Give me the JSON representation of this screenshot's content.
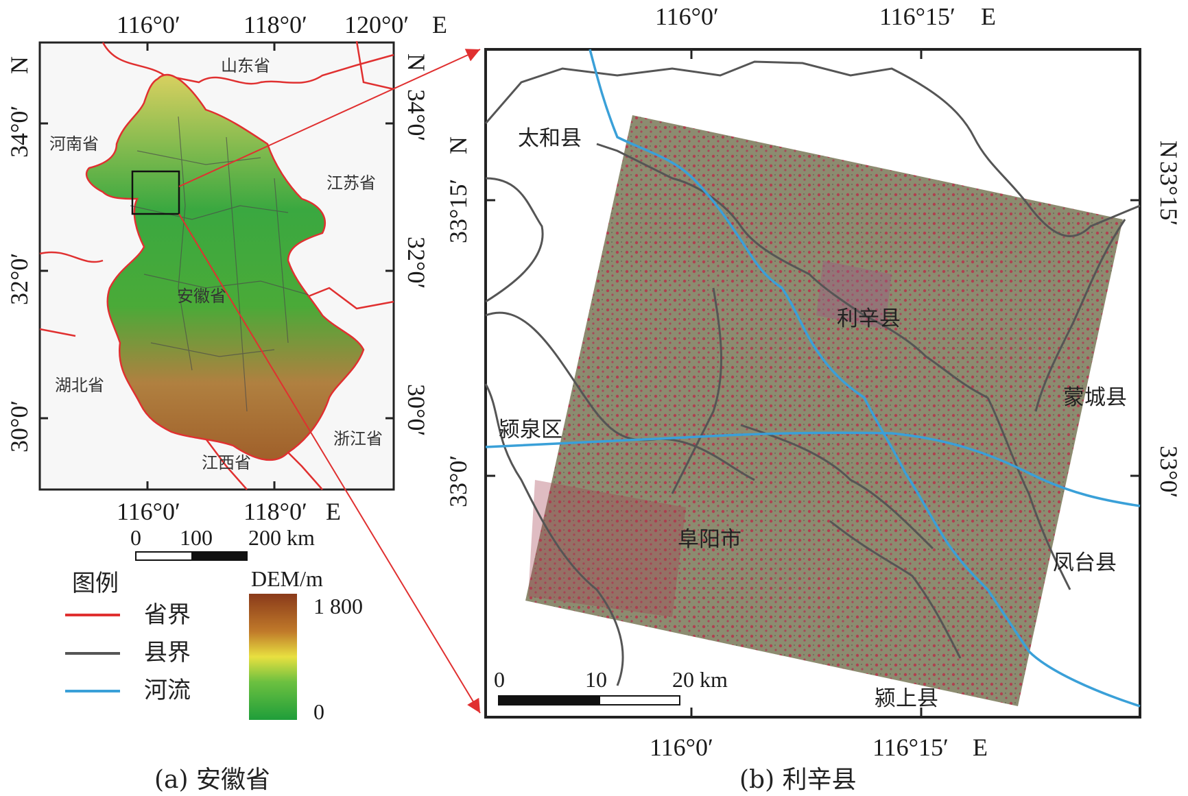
{
  "panel_a": {
    "top_lon_ticks": [
      "116°0′",
      "118°0′",
      "120°0′"
    ],
    "top_lon_suffix": "E",
    "bottom_lon_ticks": [
      "116°0′",
      "118°0′"
    ],
    "bottom_lon_suffix": "E",
    "lat_ticks": [
      "34°0′",
      "32°0′",
      "30°0′"
    ],
    "lat_suffix": "N",
    "places": {
      "shandong": "山东省",
      "henan": "河南省",
      "jiangsu": "江苏省",
      "anhui": "安徽省",
      "hubei": "湖北省",
      "zhejiang": "浙江省",
      "jiangxi": "江西省"
    },
    "scale": {
      "l0": "0",
      "l1": "100",
      "l2": "200 km"
    },
    "caption": "(a) 安徽省"
  },
  "legend": {
    "title": "图例",
    "province": "省界",
    "county": "县界",
    "river": "河流",
    "dem_title": "DEM/m",
    "dem_max": "1 800",
    "dem_min": "0"
  },
  "panel_b": {
    "top_lon_ticks": [
      "116°0′",
      "116°15′"
    ],
    "top_lon_suffix": "E",
    "bottom_lon_ticks": [
      "116°0′",
      "116°15′"
    ],
    "bottom_lon_suffix": "E",
    "lat_ticks": [
      "33°15′",
      "33°0′"
    ],
    "lat_suffix": "N",
    "places": {
      "taihe": "太和县",
      "lixin": "利辛县",
      "mengcheng": "蒙城县",
      "yingquan": "颍泉区",
      "fuyang": "阜阳市",
      "fengtai": "凤台县",
      "yingshang": "颍上县"
    },
    "scale": {
      "l0": "0",
      "l1": "10",
      "l2": "20 km"
    },
    "caption": "(b) 利辛县"
  },
  "colors": {
    "province_line": "#e03030",
    "county_line": "#555555",
    "river_line": "#3aa0d8",
    "dem_high": "#8a3a1a",
    "dem_mid": "#e8e040",
    "dem_low": "#1f9e3a",
    "imagery": "#8a8a6e",
    "arrow": "#e03030"
  },
  "icons": {
    "north_arrow": "none"
  }
}
